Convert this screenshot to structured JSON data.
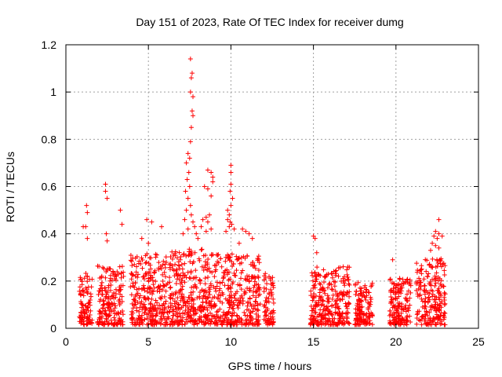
{
  "chart_data": {
    "type": "scatter",
    "title": "Day 151 of 2023, Rate Of TEC Index for receiver dumg",
    "xlabel": "GPS time / hours",
    "ylabel": "ROTI / TECUs",
    "xlim": [
      0,
      25
    ],
    "ylim": [
      0,
      1.2
    ],
    "xticks": [
      0,
      5,
      10,
      15,
      20,
      25
    ],
    "xtick_labels": [
      "0",
      "5",
      "10",
      "15",
      "20",
      "25"
    ],
    "yticks": [
      0,
      0.2,
      0.4,
      0.6,
      0.8,
      1.0,
      1.2
    ],
    "ytick_labels": [
      "0",
      "0.2",
      "0.4",
      "0.6",
      "0.8",
      "1",
      "1.2"
    ],
    "grid": true,
    "marker": "plus",
    "color": "#ff0000",
    "clusters": [
      {
        "x": [
          0.8,
          1.6
        ],
        "base_max": 0.22
      },
      {
        "x": [
          1.9,
          3.5
        ],
        "base_max": 0.25
      },
      {
        "x": [
          3.9,
          6.0
        ],
        "base_max": 0.3
      },
      {
        "x": [
          6.0,
          8.3
        ],
        "base_max": 0.32
      },
      {
        "x": [
          8.3,
          9.6
        ],
        "base_max": 0.3
      },
      {
        "x": [
          9.6,
          11.8
        ],
        "base_max": 0.3
      },
      {
        "x": [
          12.0,
          12.6
        ],
        "base_max": 0.22
      },
      {
        "x": [
          14.8,
          17.2
        ],
        "base_max": 0.25
      },
      {
        "x": [
          17.5,
          18.6
        ],
        "base_max": 0.18
      },
      {
        "x": [
          19.6,
          20.9
        ],
        "base_max": 0.2
      },
      {
        "x": [
          21.2,
          23.0
        ],
        "base_max": 0.28
      }
    ],
    "highlights": [
      {
        "x": 1.25,
        "y": 0.52
      },
      {
        "x": 1.3,
        "y": 0.49
      },
      {
        "x": 1.05,
        "y": 0.43
      },
      {
        "x": 1.2,
        "y": 0.43
      },
      {
        "x": 1.3,
        "y": 0.38
      },
      {
        "x": 2.4,
        "y": 0.61
      },
      {
        "x": 2.4,
        "y": 0.58
      },
      {
        "x": 2.5,
        "y": 0.55
      },
      {
        "x": 2.45,
        "y": 0.4
      },
      {
        "x": 2.5,
        "y": 0.37
      },
      {
        "x": 3.3,
        "y": 0.5
      },
      {
        "x": 3.4,
        "y": 0.44
      },
      {
        "x": 4.9,
        "y": 0.46
      },
      {
        "x": 5.2,
        "y": 0.45
      },
      {
        "x": 5.8,
        "y": 0.43
      },
      {
        "x": 4.6,
        "y": 0.38
      },
      {
        "x": 5.0,
        "y": 0.36
      },
      {
        "x": 7.55,
        "y": 1.14
      },
      {
        "x": 7.65,
        "y": 1.08
      },
      {
        "x": 7.6,
        "y": 1.06
      },
      {
        "x": 7.55,
        "y": 1.0
      },
      {
        "x": 7.7,
        "y": 0.98
      },
      {
        "x": 7.65,
        "y": 0.92
      },
      {
        "x": 7.7,
        "y": 0.9
      },
      {
        "x": 7.6,
        "y": 0.85
      },
      {
        "x": 7.55,
        "y": 0.79
      },
      {
        "x": 7.4,
        "y": 0.74
      },
      {
        "x": 7.5,
        "y": 0.72
      },
      {
        "x": 7.3,
        "y": 0.7
      },
      {
        "x": 7.45,
        "y": 0.66
      },
      {
        "x": 7.35,
        "y": 0.63
      },
      {
        "x": 7.5,
        "y": 0.6
      },
      {
        "x": 7.25,
        "y": 0.58
      },
      {
        "x": 7.4,
        "y": 0.55
      },
      {
        "x": 7.55,
        "y": 0.52
      },
      {
        "x": 7.3,
        "y": 0.5
      },
      {
        "x": 7.6,
        "y": 0.48
      },
      {
        "x": 7.2,
        "y": 0.46
      },
      {
        "x": 7.7,
        "y": 0.45
      },
      {
        "x": 7.8,
        "y": 0.43
      },
      {
        "x": 7.4,
        "y": 0.42
      },
      {
        "x": 7.9,
        "y": 0.4
      },
      {
        "x": 8.0,
        "y": 0.38
      },
      {
        "x": 7.1,
        "y": 0.4
      },
      {
        "x": 8.6,
        "y": 0.67
      },
      {
        "x": 8.8,
        "y": 0.66
      },
      {
        "x": 8.9,
        "y": 0.64
      },
      {
        "x": 8.9,
        "y": 0.62
      },
      {
        "x": 8.4,
        "y": 0.6
      },
      {
        "x": 8.6,
        "y": 0.59
      },
      {
        "x": 8.8,
        "y": 0.56
      },
      {
        "x": 8.7,
        "y": 0.48
      },
      {
        "x": 8.5,
        "y": 0.47
      },
      {
        "x": 8.3,
        "y": 0.46
      },
      {
        "x": 8.6,
        "y": 0.45
      },
      {
        "x": 8.2,
        "y": 0.43
      },
      {
        "x": 8.5,
        "y": 0.41
      },
      {
        "x": 8.8,
        "y": 0.42
      },
      {
        "x": 10.0,
        "y": 0.69
      },
      {
        "x": 10.0,
        "y": 0.66
      },
      {
        "x": 10.0,
        "y": 0.61
      },
      {
        "x": 9.95,
        "y": 0.58
      },
      {
        "x": 10.1,
        "y": 0.55
      },
      {
        "x": 10.0,
        "y": 0.52
      },
      {
        "x": 9.8,
        "y": 0.5
      },
      {
        "x": 9.9,
        "y": 0.48
      },
      {
        "x": 9.8,
        "y": 0.46
      },
      {
        "x": 9.95,
        "y": 0.45
      },
      {
        "x": 10.05,
        "y": 0.44
      },
      {
        "x": 9.9,
        "y": 0.43
      },
      {
        "x": 10.2,
        "y": 0.42
      },
      {
        "x": 9.7,
        "y": 0.41
      },
      {
        "x": 10.7,
        "y": 0.42
      },
      {
        "x": 10.9,
        "y": 0.41
      },
      {
        "x": 11.1,
        "y": 0.4
      },
      {
        "x": 11.3,
        "y": 0.38
      },
      {
        "x": 10.5,
        "y": 0.36
      },
      {
        "x": 15.0,
        "y": 0.39
      },
      {
        "x": 15.1,
        "y": 0.38
      },
      {
        "x": 15.2,
        "y": 0.32
      },
      {
        "x": 19.8,
        "y": 0.29
      },
      {
        "x": 22.6,
        "y": 0.46
      },
      {
        "x": 22.4,
        "y": 0.41
      },
      {
        "x": 22.6,
        "y": 0.4
      },
      {
        "x": 22.3,
        "y": 0.39
      },
      {
        "x": 22.5,
        "y": 0.38
      },
      {
        "x": 22.8,
        "y": 0.39
      },
      {
        "x": 22.2,
        "y": 0.36
      },
      {
        "x": 22.4,
        "y": 0.35
      },
      {
        "x": 22.6,
        "y": 0.34
      },
      {
        "x": 22.1,
        "y": 0.33
      }
    ]
  }
}
